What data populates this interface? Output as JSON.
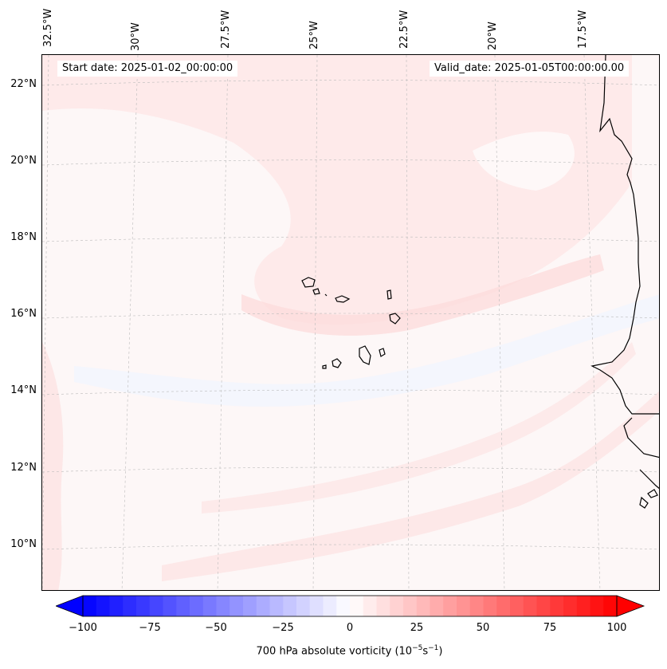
{
  "info": {
    "start_date": "Start date: 2025-01-02_00:00:00",
    "valid_date": "Valid_date: 2025-01-05T00:00:00.00"
  },
  "lon_labels": [
    "32.5°W",
    "30°W",
    "27.5°W",
    "25°W",
    "22.5°W",
    "20°W",
    "17.5°W"
  ],
  "lat_labels": [
    "22°N",
    "20°N",
    "18°N",
    "16°N",
    "14°N",
    "12°N",
    "10°N"
  ],
  "colorbar": {
    "ticks": [
      "−100",
      "−75",
      "−50",
      "−25",
      "0",
      "25",
      "50",
      "75",
      "100"
    ],
    "label_main": "700 hPa absolute vorticity (10",
    "label_exp1": "−5",
    "label_mid": "s",
    "label_exp2": "−1",
    "label_end": ")",
    "min": -100,
    "max": 100,
    "levels": 40,
    "colors": {
      "negative": "#0000ff",
      "zero": "#ffffff",
      "positive": "#ff0000"
    }
  },
  "colors": {
    "background_field": "#fdf7f7",
    "light_positive": "#fde6e6",
    "medium_positive": "#fcdada",
    "light_negative": "#f3f5fd",
    "coastline": "#000000",
    "gridline": "#bbbbbb"
  }
}
